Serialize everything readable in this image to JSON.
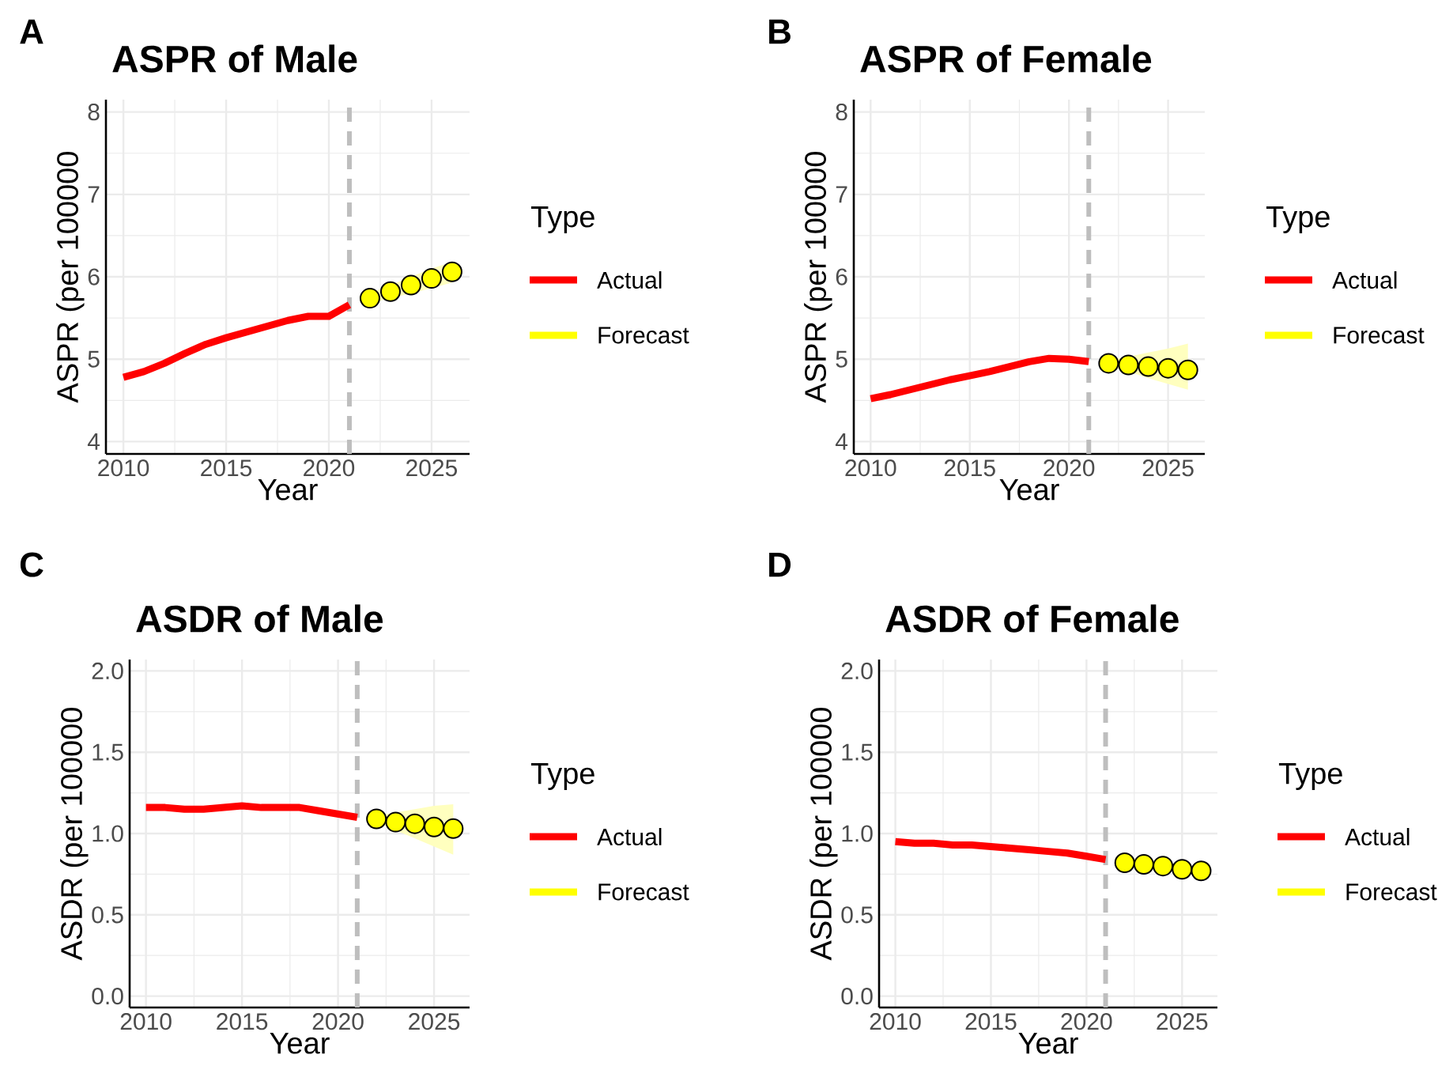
{
  "chart_data": [
    {
      "type": "line",
      "title": "ASPR of Male",
      "xlabel": "Year",
      "ylabel": "ASPR (per 100000",
      "legend_title": "Type",
      "annotations": [
        "A"
      ],
      "legend": "right",
      "grid": true,
      "xlim": [
        2009.15,
        2026.85
      ],
      "xticks": [
        2010,
        2015,
        2020,
        2025
      ],
      "ylim": [
        3.85,
        8.15
      ],
      "yticks": [
        4,
        5,
        6,
        7,
        8
      ],
      "ref_lines": [
        {
          "axis": "x",
          "value": 2021,
          "color": "#bebebe",
          "line_style": "dashed"
        }
      ],
      "series": [
        {
          "name": "Actual",
          "color": "#ff0000",
          "x": [
            2010,
            2011,
            2012,
            2013,
            2014,
            2015,
            2016,
            2017,
            2018,
            2019,
            2020,
            2021
          ],
          "values": [
            4.78,
            4.85,
            4.95,
            5.07,
            5.18,
            5.26,
            5.33,
            5.4,
            5.47,
            5.52,
            5.52,
            5.66
          ]
        },
        {
          "name": "Forecast",
          "type": "scatter",
          "marker": "circle",
          "color": "#ffff00",
          "x": [
            2022,
            2023,
            2024,
            2025,
            2026
          ],
          "values": [
            5.74,
            5.82,
            5.9,
            5.98,
            6.06
          ],
          "lower": [
            5.68,
            5.74,
            5.8,
            5.86,
            5.93
          ],
          "upper": [
            5.8,
            5.9,
            6.0,
            6.1,
            6.18
          ]
        }
      ]
    },
    {
      "type": "line",
      "title": "ASPR of Female",
      "xlabel": "Year",
      "ylabel": "ASPR (per 100000",
      "legend_title": "Type",
      "annotations": [
        "B"
      ],
      "legend": "right",
      "grid": true,
      "xlim": [
        2009.15,
        2026.85
      ],
      "xticks": [
        2010,
        2015,
        2020,
        2025
      ],
      "ylim": [
        3.85,
        8.15
      ],
      "yticks": [
        4,
        5,
        6,
        7,
        8
      ],
      "ref_lines": [
        {
          "axis": "x",
          "value": 2021,
          "color": "#bebebe",
          "line_style": "dashed"
        }
      ],
      "series": [
        {
          "name": "Actual",
          "color": "#ff0000",
          "x": [
            2010,
            2011,
            2012,
            2013,
            2014,
            2015,
            2016,
            2017,
            2018,
            2019,
            2020,
            2021
          ],
          "values": [
            4.52,
            4.57,
            4.63,
            4.69,
            4.75,
            4.8,
            4.85,
            4.91,
            4.97,
            5.01,
            5.0,
            4.97
          ]
        },
        {
          "name": "Forecast",
          "type": "scatter",
          "marker": "circle",
          "color": "#ffff00",
          "x": [
            2022,
            2023,
            2024,
            2025,
            2026
          ],
          "values": [
            4.95,
            4.93,
            4.91,
            4.89,
            4.87
          ],
          "lower": [
            4.91,
            4.85,
            4.77,
            4.7,
            4.63
          ],
          "upper": [
            4.99,
            5.03,
            5.08,
            5.13,
            5.19
          ]
        }
      ]
    },
    {
      "type": "line",
      "title": "ASDR of Male",
      "xlabel": "Year",
      "ylabel": "ASDR (per 100000",
      "legend_title": "Type",
      "annotations": [
        "C"
      ],
      "legend": "right",
      "grid": true,
      "xlim": [
        2009.15,
        2026.85
      ],
      "xticks": [
        2010,
        2015,
        2020,
        2025
      ],
      "ylim": [
        -0.07,
        2.07
      ],
      "yticks": [
        {
          "value": 0,
          "label": "0.0"
        },
        {
          "value": 0.5,
          "label": "0.5"
        },
        {
          "value": 1,
          "label": "1.0"
        },
        {
          "value": 1.5,
          "label": "1.5"
        },
        {
          "value": 2,
          "label": "2.0"
        }
      ],
      "ref_lines": [
        {
          "axis": "x",
          "value": 2021,
          "color": "#bebebe",
          "line_style": "dashed"
        }
      ],
      "series": [
        {
          "name": "Actual",
          "color": "#ff0000",
          "x": [
            2010,
            2011,
            2012,
            2013,
            2014,
            2015,
            2016,
            2017,
            2018,
            2019,
            2020,
            2021
          ],
          "values": [
            1.16,
            1.16,
            1.15,
            1.15,
            1.16,
            1.17,
            1.16,
            1.16,
            1.16,
            1.14,
            1.12,
            1.1
          ]
        },
        {
          "name": "Forecast",
          "type": "scatter",
          "marker": "circle",
          "color": "#ffff00",
          "x": [
            2022,
            2023,
            2024,
            2025,
            2026
          ],
          "values": [
            1.09,
            1.07,
            1.06,
            1.04,
            1.03
          ],
          "lower": [
            1.07,
            1.02,
            0.97,
            0.92,
            0.87
          ],
          "upper": [
            1.11,
            1.13,
            1.15,
            1.17,
            1.18
          ]
        }
      ]
    },
    {
      "type": "line",
      "title": "ASDR of Female",
      "xlabel": "Year",
      "ylabel": "ASDR (per 100000",
      "legend_title": "Type",
      "annotations": [
        "D"
      ],
      "legend": "right",
      "grid": true,
      "xlim": [
        2009.15,
        2026.85
      ],
      "xticks": [
        2010,
        2015,
        2020,
        2025
      ],
      "ylim": [
        -0.07,
        2.07
      ],
      "yticks": [
        {
          "value": 0,
          "label": "0.0"
        },
        {
          "value": 0.5,
          "label": "0.5"
        },
        {
          "value": 1,
          "label": "1.0"
        },
        {
          "value": 1.5,
          "label": "1.5"
        },
        {
          "value": 2,
          "label": "2.0"
        }
      ],
      "ref_lines": [
        {
          "axis": "x",
          "value": 2021,
          "color": "#bebebe",
          "line_style": "dashed"
        }
      ],
      "series": [
        {
          "name": "Actual",
          "color": "#ff0000",
          "x": [
            2010,
            2011,
            2012,
            2013,
            2014,
            2015,
            2016,
            2017,
            2018,
            2019,
            2020,
            2021
          ],
          "values": [
            0.95,
            0.94,
            0.94,
            0.93,
            0.93,
            0.92,
            0.91,
            0.9,
            0.89,
            0.88,
            0.86,
            0.84
          ]
        },
        {
          "name": "Forecast",
          "type": "scatter",
          "marker": "circle",
          "color": "#ffff00",
          "x": [
            2022,
            2023,
            2024,
            2025,
            2026
          ],
          "values": [
            0.82,
            0.81,
            0.8,
            0.78,
            0.77
          ]
        }
      ]
    }
  ]
}
